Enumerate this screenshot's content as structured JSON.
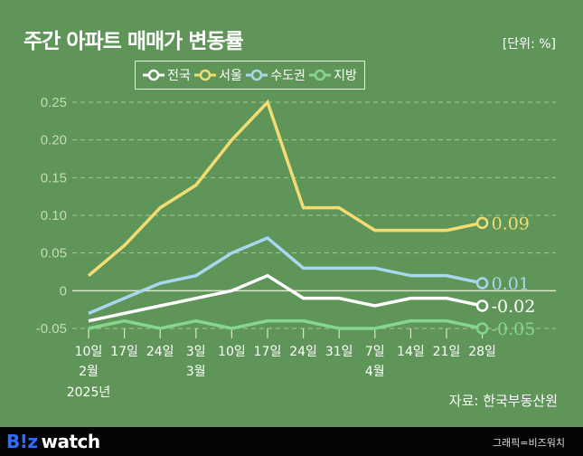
{
  "header": {
    "title": "주간 아파트 매매가 변동률",
    "unit": "[단위: %]"
  },
  "legend": [
    {
      "label": "전국",
      "color": "#ffffff"
    },
    {
      "label": "서울",
      "color": "#f2dd72"
    },
    {
      "label": "수도권",
      "color": "#a7d8ee"
    },
    {
      "label": "지방",
      "color": "#86d68f"
    }
  ],
  "chart_data": {
    "type": "line",
    "title": "주간 아파트 매매가 변동률",
    "ylabel": "%",
    "ylim": [
      -0.05,
      0.25
    ],
    "yticks": [
      "0.25",
      "0.20",
      "0.15",
      "0.10",
      "0.05",
      "0",
      "-0.05"
    ],
    "ytick_values": [
      0.25,
      0.2,
      0.15,
      0.1,
      0.05,
      0,
      -0.05
    ],
    "categories": [
      "10일",
      "17일",
      "24일",
      "3일",
      "10일",
      "17일",
      "24일",
      "31일",
      "7일",
      "14일",
      "21일",
      "28일"
    ],
    "month_labels": [
      {
        "index": 0,
        "label": "2월"
      },
      {
        "index": 3,
        "label": "3월"
      },
      {
        "index": 8,
        "label": "4월"
      }
    ],
    "year_label": "2025년",
    "grid": true,
    "legend_position": "top-center",
    "series": [
      {
        "name": "서울",
        "color": "#f2dd72",
        "values": [
          0.02,
          0.06,
          0.11,
          0.14,
          0.2,
          0.25,
          0.11,
          0.11,
          0.08,
          0.08,
          0.08,
          0.09
        ],
        "end_label": "0.09"
      },
      {
        "name": "수도권",
        "color": "#a7d8ee",
        "values": [
          -0.03,
          -0.01,
          0.01,
          0.02,
          0.05,
          0.07,
          0.03,
          0.03,
          0.03,
          0.02,
          0.02,
          0.01
        ],
        "end_label": "0.01"
      },
      {
        "name": "전국",
        "color": "#ffffff",
        "values": [
          -0.04,
          -0.03,
          -0.02,
          -0.01,
          0.0,
          0.02,
          -0.01,
          -0.01,
          -0.02,
          -0.01,
          -0.01,
          -0.02
        ],
        "end_label": "-0.02"
      },
      {
        "name": "지방",
        "color": "#86d68f",
        "values": [
          -0.05,
          -0.04,
          -0.05,
          -0.04,
          -0.05,
          -0.04,
          -0.04,
          -0.05,
          -0.05,
          -0.04,
          -0.04,
          -0.05
        ],
        "end_label": "-0.05"
      }
    ]
  },
  "source": "자료: 한국부동산원",
  "footer": {
    "logo_b": "B!z",
    "logo_w": "watch",
    "credit": "그래픽=비즈워치"
  }
}
